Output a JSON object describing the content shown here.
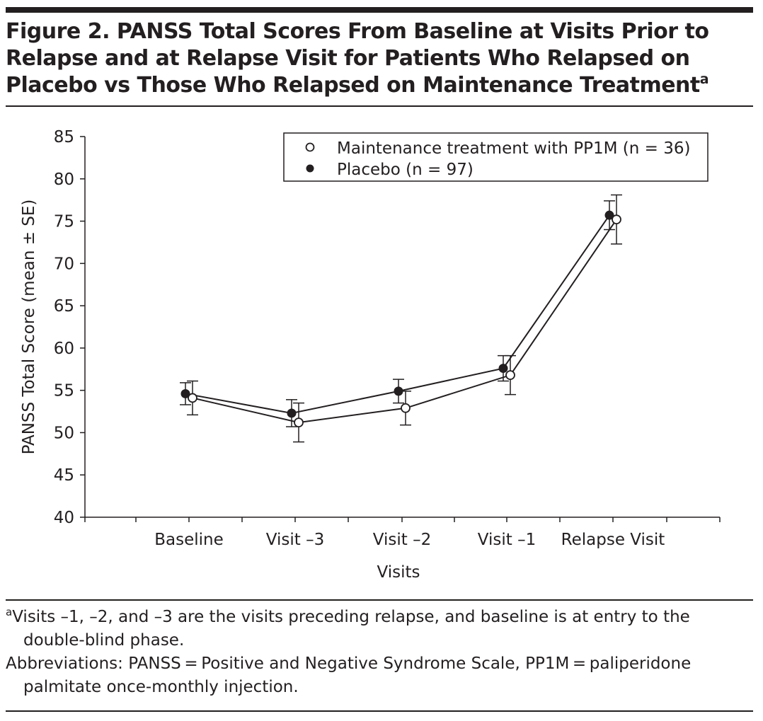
{
  "figure": {
    "title": "Figure 2. PANSS Total Scores From Baseline at Visits Prior to Relapse and at Relapse Visit for Patients Who Relapsed on Placebo vs Those Who Relapsed on Maintenance Treatment",
    "title_superscript": "a"
  },
  "chart_data": {
    "type": "line",
    "categories": [
      "Baseline",
      "Visit –3",
      "Visit –2",
      "Visit –1",
      "Relapse Visit"
    ],
    "xlabel": "Visits",
    "ylabel": "PANSS Total Score (mean ± SE)",
    "ylim": [
      40,
      85
    ],
    "yticks": [
      40,
      45,
      50,
      55,
      60,
      65,
      70,
      75,
      80,
      85
    ],
    "grid": false,
    "legend_position": "top-right",
    "series": [
      {
        "name": "Maintenance treatment with PP1M (n = 36)",
        "marker": "open-circle",
        "values": [
          54.1,
          51.2,
          52.9,
          56.8,
          75.2
        ],
        "error": [
          2.0,
          2.3,
          2.0,
          2.3,
          2.9
        ]
      },
      {
        "name": "Placebo (n = 97)",
        "marker": "filled-circle",
        "values": [
          54.6,
          52.3,
          54.9,
          57.6,
          75.7
        ],
        "error": [
          1.3,
          1.6,
          1.4,
          1.5,
          1.7
        ]
      }
    ]
  },
  "footnotes": {
    "marker": "a",
    "note_a": "Visits –1, –2, and –3 are the visits preceding relapse, and baseline is at entry to the double-blind phase.",
    "abbreviations": "Abbreviations: PANSS = Positive and Negative Syndrome Scale, PP1M = paliperidone palmitate once-monthly injection."
  },
  "colors": {
    "ink": "#231f20",
    "background": "#ffffff"
  }
}
